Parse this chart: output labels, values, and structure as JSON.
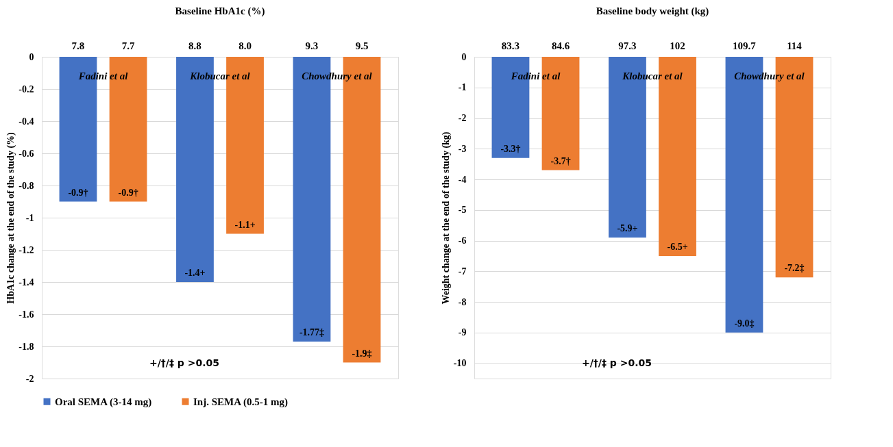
{
  "chart_data": [
    {
      "type": "bar",
      "title": "Baseline HbA1c (%)",
      "ylabel": "HbA1c change at the end of the study (%)",
      "categories": [
        "Fadini et al",
        "Klobucar et al",
        "Chowdhury et al"
      ],
      "series": [
        {
          "name": "Oral SEMA (3-14 mg)",
          "color": "#4472c4",
          "values": [
            -0.9,
            -1.4,
            -1.77
          ],
          "value_labels": [
            "-0.9†",
            "-1.4+",
            "-1.77‡"
          ]
        },
        {
          "name": "Inj. SEMA (0.5-1 mg)",
          "color": "#ed7d31",
          "values": [
            -0.9,
            -1.1,
            -1.9
          ],
          "value_labels": [
            "-0.9†",
            "-1.1+",
            "-1.9‡"
          ]
        }
      ],
      "ylim": [
        -2,
        0
      ],
      "yticks": [
        0,
        -0.2,
        -0.4,
        -0.6,
        -0.8,
        -1,
        -1.2,
        -1.4,
        -1.6,
        -1.8,
        -2
      ],
      "grid": "y",
      "legend": "bottom",
      "tick_labels": "y",
      "annotations": [
        "7.8",
        "7.7",
        "8.8",
        "8.0",
        "9.3",
        "9.5",
        "+/†/‡ p >0.05"
      ]
    },
    {
      "type": "bar",
      "title": "Baseline body weight (kg)",
      "ylabel": "Weight change at the end of the study (kg)",
      "categories": [
        "Fadini et al",
        "Klobucar et al",
        "Chowdhury et al"
      ],
      "series": [
        {
          "name": "Oral SEMA (3-14 mg)",
          "color": "#4472c4",
          "values": [
            -3.3,
            -5.9,
            -9.0
          ],
          "value_labels": [
            "-3.3†",
            "-5.9+",
            "-9.0‡"
          ]
        },
        {
          "name": "Inj. SEMA (0.5-1 mg)",
          "color": "#ed7d31",
          "values": [
            -3.7,
            -6.5,
            -7.2
          ],
          "value_labels": [
            "-3.7†",
            "-6.5+",
            "-7.2‡"
          ]
        }
      ],
      "ylim": [
        -10.5,
        0
      ],
      "yticks": [
        0,
        -1,
        -2,
        -3,
        -4,
        -5,
        -6,
        -7,
        -8,
        -9,
        -10
      ],
      "grid": "y",
      "legend": "bottom",
      "tick_labels": "y",
      "annotations": [
        "83.3",
        "84.6",
        "97.3",
        "102",
        "109.7",
        "114",
        "+/†/‡ p >0.05"
      ]
    }
  ]
}
